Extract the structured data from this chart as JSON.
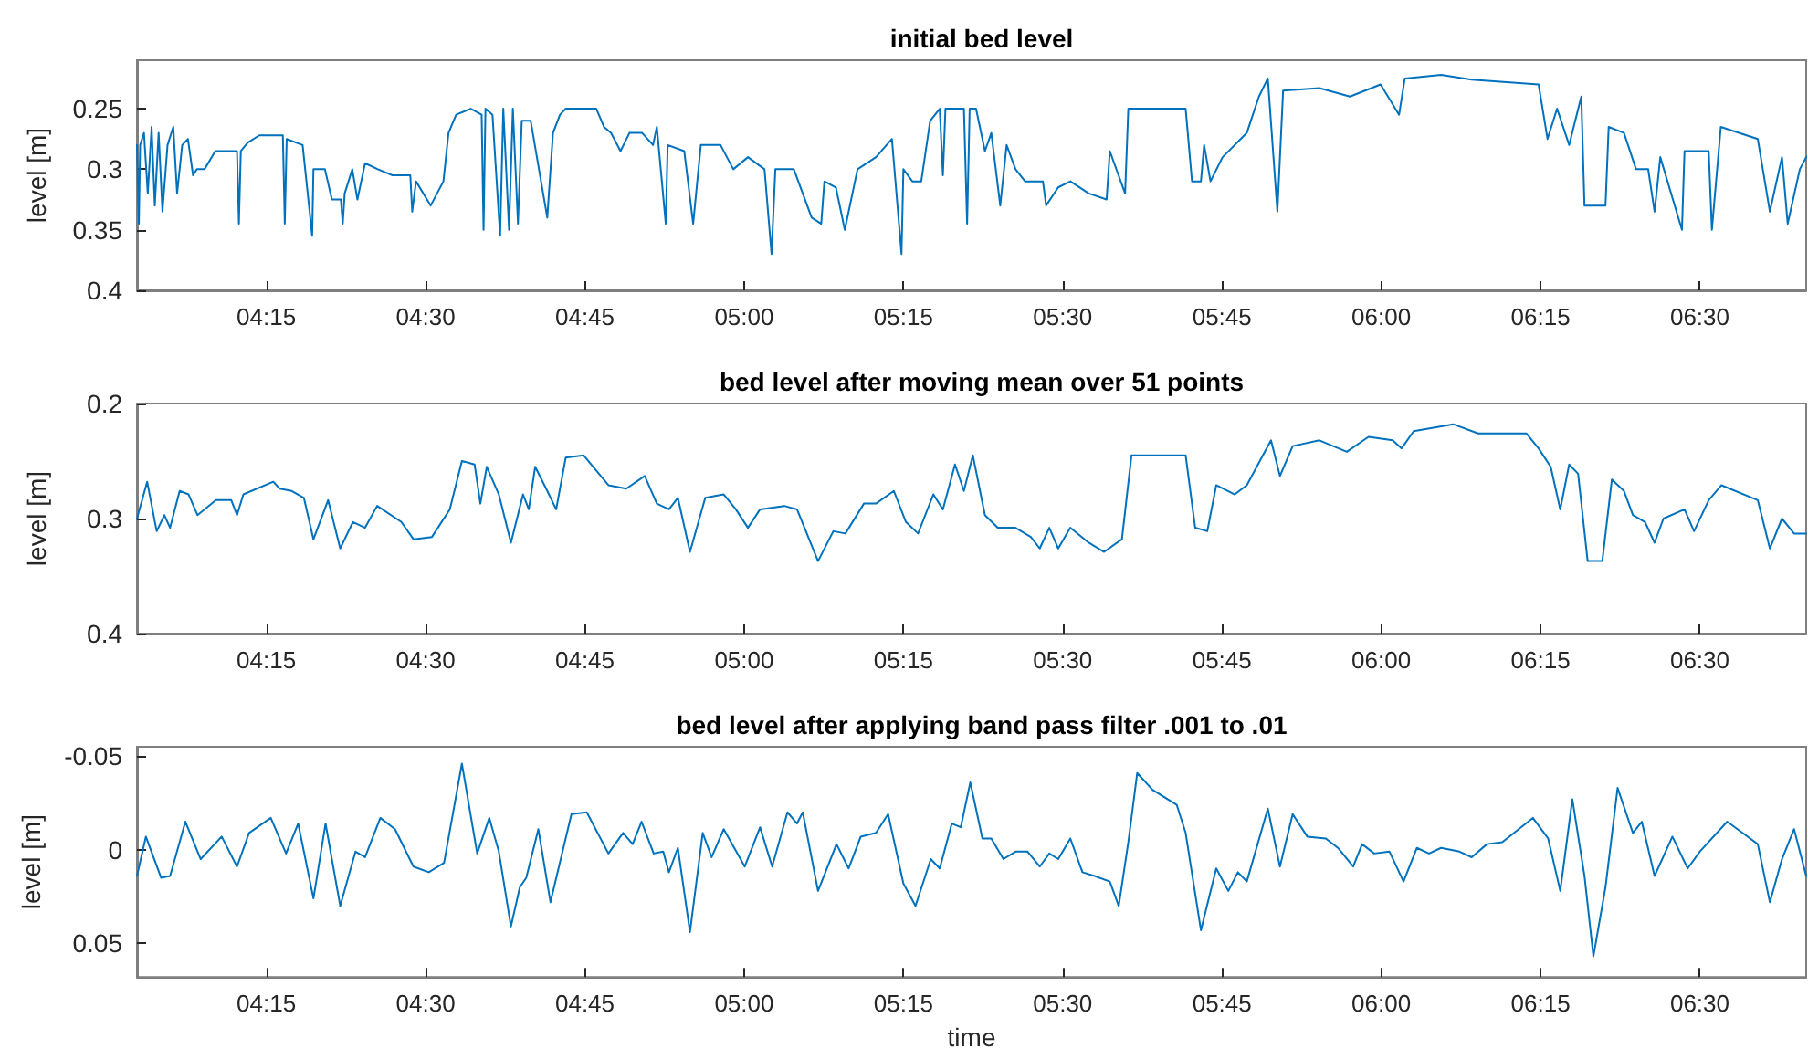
{
  "chart_data": [
    {
      "type": "line",
      "title": "initial bed level",
      "ylabel": "level [m]",
      "color": "#0072bd",
      "grid": false,
      "xlim": [
        4.047,
        6.667
      ],
      "xticks": [
        {
          "value": 4.25,
          "label": "04:15"
        },
        {
          "value": 4.5,
          "label": "04:30"
        },
        {
          "value": 4.75,
          "label": "04:45"
        },
        {
          "value": 5,
          "label": "05:00"
        },
        {
          "value": 5.25,
          "label": "05:15"
        },
        {
          "value": 5.5,
          "label": "05:30"
        },
        {
          "value": 5.75,
          "label": "05:45"
        },
        {
          "value": 6,
          "label": "06:00"
        },
        {
          "value": 6.25,
          "label": "06:15"
        },
        {
          "value": 6.5,
          "label": "06:30"
        }
      ],
      "ylim": [
        0.4,
        0.21
      ],
      "yticks": [
        0.25,
        0.3,
        0.35,
        0.4
      ],
      "x": [
        4.047,
        4.05,
        4.052,
        4.058,
        4.064,
        4.07,
        4.075,
        4.081,
        4.087,
        4.095,
        4.104,
        4.11,
        4.118,
        4.127,
        4.135,
        4.141,
        4.153,
        4.17,
        4.204,
        4.207,
        4.21,
        4.221,
        4.239,
        4.276,
        4.279,
        4.282,
        4.307,
        4.322,
        4.324,
        4.342,
        4.353,
        4.367,
        4.37,
        4.373,
        4.385,
        4.393,
        4.405,
        4.425,
        4.448,
        4.476,
        4.479,
        4.485,
        4.508,
        4.528,
        4.536,
        4.548,
        4.571,
        4.588,
        4.591,
        4.594,
        4.605,
        4.617,
        4.622,
        4.631,
        4.637,
        4.645,
        4.651,
        4.665,
        4.691,
        4.7,
        4.711,
        4.72,
        4.768,
        4.78,
        4.791,
        4.806,
        4.82,
        4.84,
        4.857,
        4.863,
        4.877,
        4.88,
        4.906,
        4.92,
        4.932,
        4.963,
        4.983,
        5.006,
        5.032,
        5.043,
        5.049,
        5.078,
        5.106,
        5.121,
        5.126,
        5.144,
        5.158,
        5.178,
        5.207,
        5.232,
        5.247,
        5.25,
        5.264,
        5.278,
        5.292,
        5.307,
        5.312,
        5.316,
        5.345,
        5.35,
        5.354,
        5.364,
        5.378,
        5.388,
        5.402,
        5.412,
        5.426,
        5.441,
        5.469,
        5.474,
        5.493,
        5.512,
        5.541,
        5.569,
        5.574,
        5.598,
        5.603,
        5.693,
        5.703,
        5.717,
        5.722,
        5.732,
        5.751,
        5.789,
        5.808,
        5.822,
        5.837,
        5.846,
        5.903,
        5.951,
        5.999,
        6.028,
        6.037,
        6.094,
        6.142,
        6.247,
        6.261,
        6.276,
        6.295,
        6.314,
        6.319,
        6.352,
        6.357,
        6.381,
        6.4,
        6.419,
        6.429,
        6.438,
        6.472,
        6.476,
        6.514,
        6.519,
        6.533,
        6.591,
        6.61,
        6.629,
        6.638,
        6.657,
        6.667
      ],
      "values": [
        0.28,
        0.345,
        0.28,
        0.27,
        0.32,
        0.265,
        0.33,
        0.27,
        0.335,
        0.28,
        0.265,
        0.32,
        0.28,
        0.275,
        0.305,
        0.3,
        0.3,
        0.285,
        0.285,
        0.345,
        0.285,
        0.278,
        0.272,
        0.272,
        0.345,
        0.275,
        0.28,
        0.355,
        0.3,
        0.3,
        0.325,
        0.325,
        0.345,
        0.32,
        0.3,
        0.325,
        0.295,
        0.3,
        0.305,
        0.305,
        0.335,
        0.31,
        0.33,
        0.31,
        0.27,
        0.255,
        0.25,
        0.255,
        0.35,
        0.25,
        0.255,
        0.355,
        0.25,
        0.35,
        0.25,
        0.345,
        0.26,
        0.26,
        0.34,
        0.27,
        0.255,
        0.25,
        0.25,
        0.265,
        0.27,
        0.285,
        0.27,
        0.27,
        0.28,
        0.265,
        0.345,
        0.28,
        0.285,
        0.345,
        0.28,
        0.28,
        0.3,
        0.29,
        0.3,
        0.37,
        0.3,
        0.3,
        0.34,
        0.345,
        0.31,
        0.315,
        0.35,
        0.3,
        0.29,
        0.275,
        0.37,
        0.3,
        0.31,
        0.31,
        0.26,
        0.25,
        0.305,
        0.25,
        0.25,
        0.345,
        0.25,
        0.25,
        0.285,
        0.27,
        0.33,
        0.28,
        0.3,
        0.31,
        0.31,
        0.33,
        0.315,
        0.31,
        0.32,
        0.325,
        0.285,
        0.32,
        0.25,
        0.25,
        0.31,
        0.31,
        0.28,
        0.31,
        0.29,
        0.27,
        0.24,
        0.225,
        0.335,
        0.235,
        0.233,
        0.24,
        0.23,
        0.255,
        0.225,
        0.222,
        0.226,
        0.23,
        0.275,
        0.25,
        0.28,
        0.24,
        0.33,
        0.33,
        0.265,
        0.27,
        0.3,
        0.3,
        0.335,
        0.29,
        0.35,
        0.285,
        0.285,
        0.35,
        0.265,
        0.275,
        0.335,
        0.29,
        0.345,
        0.3,
        0.29
      ]
    },
    {
      "type": "line",
      "title": "bed level after moving mean over 51 points",
      "ylabel": "level [m]",
      "color": "#0072bd",
      "grid": false,
      "xlim": [
        4.047,
        6.667
      ],
      "xticks": [
        {
          "value": 4.25,
          "label": "04:15"
        },
        {
          "value": 4.5,
          "label": "04:30"
        },
        {
          "value": 4.75,
          "label": "04:45"
        },
        {
          "value": 5,
          "label": "05:00"
        },
        {
          "value": 5.25,
          "label": "05:15"
        },
        {
          "value": 5.5,
          "label": "05:30"
        },
        {
          "value": 5.75,
          "label": "05:45"
        },
        {
          "value": 6,
          "label": "06:00"
        },
        {
          "value": 6.25,
          "label": "06:15"
        },
        {
          "value": 6.5,
          "label": "06:30"
        }
      ],
      "ylim": [
        0.4,
        0.2
      ],
      "yticks": [
        0.2,
        0.3,
        0.4
      ],
      "x": [
        4.047,
        4.063,
        4.078,
        4.09,
        4.099,
        4.114,
        4.128,
        4.142,
        4.171,
        4.195,
        4.204,
        4.214,
        4.261,
        4.271,
        4.29,
        4.309,
        4.324,
        4.347,
        4.366,
        4.386,
        4.405,
        4.424,
        4.462,
        4.481,
        4.51,
        4.538,
        4.557,
        4.577,
        4.586,
        4.596,
        4.615,
        4.634,
        4.653,
        4.662,
        4.672,
        4.691,
        4.705,
        4.72,
        4.748,
        4.787,
        4.815,
        4.844,
        4.863,
        4.882,
        4.896,
        4.915,
        4.939,
        4.968,
        4.987,
        5.006,
        5.025,
        5.063,
        5.083,
        5.116,
        5.14,
        5.159,
        5.188,
        5.207,
        5.235,
        5.254,
        5.273,
        5.297,
        5.312,
        5.331,
        5.345,
        5.359,
        5.378,
        5.398,
        5.426,
        5.45,
        5.464,
        5.479,
        5.493,
        5.512,
        5.541,
        5.565,
        5.593,
        5.608,
        5.693,
        5.708,
        5.727,
        5.741,
        5.77,
        5.789,
        5.827,
        5.841,
        5.861,
        5.903,
        5.946,
        5.98,
        6.018,
        6.032,
        6.051,
        6.113,
        6.152,
        6.228,
        6.247,
        6.266,
        6.281,
        6.295,
        6.309,
        6.324,
        6.347,
        6.362,
        6.381,
        6.395,
        6.414,
        6.429,
        6.443,
        6.476,
        6.491,
        6.514,
        6.534,
        6.591,
        6.61,
        6.629,
        6.648,
        6.667
      ],
      "values": [
        0.3,
        0.268,
        0.311,
        0.297,
        0.308,
        0.276,
        0.279,
        0.297,
        0.284,
        0.284,
        0.297,
        0.279,
        0.268,
        0.274,
        0.276,
        0.282,
        0.318,
        0.284,
        0.326,
        0.303,
        0.308,
        0.289,
        0.303,
        0.318,
        0.316,
        0.292,
        0.25,
        0.253,
        0.287,
        0.255,
        0.279,
        0.321,
        0.279,
        0.292,
        0.255,
        0.276,
        0.292,
        0.247,
        0.245,
        0.271,
        0.274,
        0.263,
        0.287,
        0.292,
        0.282,
        0.329,
        0.282,
        0.279,
        0.292,
        0.308,
        0.292,
        0.289,
        0.292,
        0.337,
        0.311,
        0.313,
        0.287,
        0.287,
        0.276,
        0.303,
        0.313,
        0.279,
        0.292,
        0.253,
        0.276,
        0.245,
        0.297,
        0.308,
        0.308,
        0.316,
        0.326,
        0.308,
        0.326,
        0.308,
        0.321,
        0.329,
        0.318,
        0.245,
        0.245,
        0.308,
        0.311,
        0.271,
        0.279,
        0.271,
        0.232,
        0.263,
        0.237,
        0.232,
        0.242,
        0.229,
        0.232,
        0.239,
        0.224,
        0.218,
        0.226,
        0.226,
        0.239,
        0.255,
        0.292,
        0.253,
        0.261,
        0.337,
        0.337,
        0.266,
        0.276,
        0.297,
        0.303,
        0.321,
        0.3,
        0.292,
        0.311,
        0.284,
        0.271,
        0.284,
        0.326,
        0.3,
        0.313,
        0.313
      ]
    },
    {
      "type": "line",
      "title": "bed level after applying band pass filter .001 to .01",
      "xlabel": "time",
      "ylabel": "level [m]",
      "color": "#0072bd",
      "grid": false,
      "xlim": [
        4.047,
        6.667
      ],
      "xticks": [
        {
          "value": 4.25,
          "label": "04:15"
        },
        {
          "value": 4.5,
          "label": "04:30"
        },
        {
          "value": 4.75,
          "label": "04:45"
        },
        {
          "value": 5,
          "label": "05:00"
        },
        {
          "value": 5.25,
          "label": "05:15"
        },
        {
          "value": 5.5,
          "label": "05:30"
        },
        {
          "value": 5.75,
          "label": "05:45"
        },
        {
          "value": 6,
          "label": "06:00"
        },
        {
          "value": 6.25,
          "label": "06:15"
        },
        {
          "value": 6.5,
          "label": "06:30"
        }
      ],
      "ylim": [
        0.068,
        -0.055
      ],
      "yticks": [
        -0.05,
        0,
        0.05
      ],
      "x": [
        4.047,
        4.061,
        4.085,
        4.099,
        4.123,
        4.147,
        4.18,
        4.204,
        4.223,
        4.257,
        4.281,
        4.3,
        4.324,
        4.343,
        4.366,
        4.39,
        4.405,
        4.429,
        4.452,
        4.481,
        4.505,
        4.529,
        4.557,
        4.581,
        4.6,
        4.615,
        4.634,
        4.648,
        4.658,
        4.677,
        4.696,
        4.729,
        4.753,
        4.787,
        4.81,
        4.825,
        4.839,
        4.858,
        4.873,
        4.882,
        4.896,
        4.915,
        4.935,
        4.949,
        4.968,
        5.001,
        5.025,
        5.044,
        5.068,
        5.083,
        5.092,
        5.116,
        5.145,
        5.164,
        5.183,
        5.207,
        5.226,
        5.25,
        5.269,
        5.293,
        5.307,
        5.326,
        5.34,
        5.355,
        5.374,
        5.388,
        5.407,
        5.426,
        5.445,
        5.464,
        5.479,
        5.493,
        5.512,
        5.531,
        5.55,
        5.574,
        5.588,
        5.603,
        5.617,
        5.641,
        5.679,
        5.693,
        5.717,
        5.741,
        5.76,
        5.775,
        5.789,
        5.822,
        5.841,
        5.861,
        5.884,
        5.913,
        5.932,
        5.956,
        5.97,
        5.989,
        6.013,
        6.035,
        6.056,
        6.075,
        6.094,
        6.123,
        6.142,
        6.166,
        6.19,
        6.238,
        6.262,
        6.281,
        6.3,
        6.319,
        6.333,
        6.352,
        6.371,
        6.395,
        6.409,
        6.429,
        6.457,
        6.481,
        6.5,
        6.543,
        6.567,
        6.591,
        6.61,
        6.629,
        6.648,
        6.667
      ],
      "values": [
        0.014,
        -0.007,
        0.015,
        0.014,
        -0.015,
        0.005,
        -0.007,
        0.009,
        -0.009,
        -0.017,
        0.002,
        -0.014,
        0.026,
        -0.014,
        0.03,
        0.001,
        0.004,
        -0.017,
        -0.011,
        0.009,
        0.012,
        0.007,
        -0.046,
        0.002,
        -0.017,
        0.001,
        0.041,
        0.02,
        0.015,
        -0.011,
        0.028,
        -0.019,
        -0.02,
        0.002,
        -0.009,
        -0.003,
        -0.015,
        0.002,
        0.001,
        0.012,
        -0.001,
        0.044,
        -0.009,
        0.004,
        -0.011,
        0.009,
        -0.012,
        0.009,
        -0.02,
        -0.014,
        -0.02,
        0.022,
        -0.003,
        0.01,
        -0.007,
        -0.009,
        -0.019,
        0.018,
        0.03,
        0.005,
        0.01,
        -0.014,
        -0.012,
        -0.036,
        -0.006,
        -0.006,
        0.005,
        0.001,
        0.001,
        0.009,
        0.002,
        0.005,
        -0.006,
        0.012,
        0.014,
        0.017,
        0.03,
        -0.004,
        -0.041,
        -0.032,
        -0.024,
        -0.009,
        0.043,
        0.01,
        0.022,
        0.012,
        0.017,
        -0.022,
        0.009,
        -0.019,
        -0.007,
        -0.006,
        -0.001,
        0.009,
        -0.003,
        0.002,
        0.001,
        0.017,
        -0.001,
        0.002,
        -0.001,
        0.001,
        0.004,
        -0.003,
        -0.004,
        -0.017,
        -0.006,
        0.022,
        -0.027,
        0.014,
        0.057,
        0.02,
        -0.033,
        -0.009,
        -0.015,
        0.014,
        -0.007,
        0.01,
        0.001,
        -0.015,
        -0.009,
        -0.003,
        0.028,
        0.005,
        -0.011,
        0.014
      ]
    }
  ]
}
